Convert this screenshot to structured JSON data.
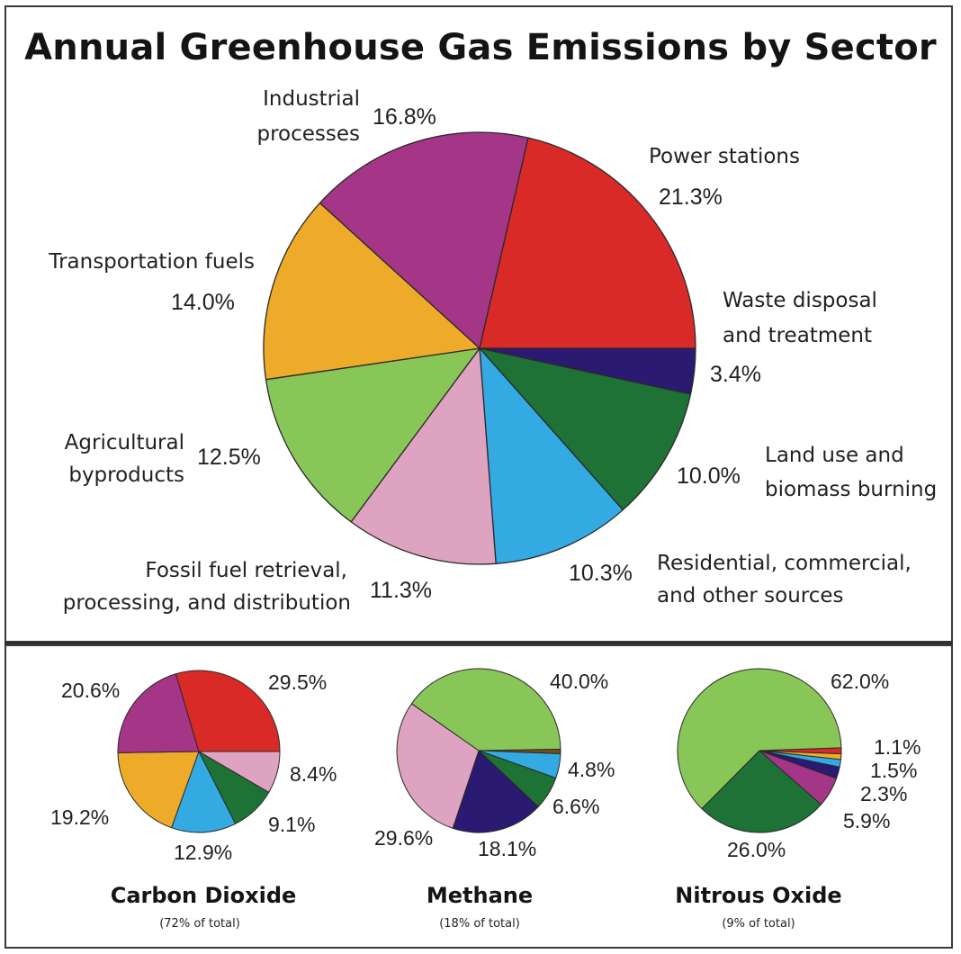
{
  "chart_data": [
    {
      "type": "pie",
      "title": "Annual Greenhouse Gas Emissions by Sector",
      "slices": [
        {
          "label": "Power stations",
          "value": 21.3,
          "value_label": "21.3%",
          "color": "#da2a27"
        },
        {
          "label": "Waste disposal and treatment",
          "value": 3.4,
          "value_label": "3.4%",
          "color": "#2b1a72"
        },
        {
          "label": "Land use and biomass burning",
          "value": 10.0,
          "value_label": "10.0%",
          "color": "#1e7236"
        },
        {
          "label": "Residential, commercial, and other sources",
          "value": 10.3,
          "value_label": "10.3%",
          "color": "#33aae1"
        },
        {
          "label": "Fossil fuel retrieval, processing, and distribution",
          "value": 11.3,
          "value_label": "11.3%",
          "color": "#dea3c0"
        },
        {
          "label": "Agricultural byproducts",
          "value": 12.5,
          "value_label": "12.5%",
          "color": "#88c657"
        },
        {
          "label": "Transportation fuels",
          "value": 14.0,
          "value_label": "14.0%",
          "color": "#eeab2a"
        },
        {
          "label": "Industrial processes",
          "value": 16.8,
          "value_label": "16.8%",
          "color": "#a53586"
        }
      ],
      "label_lines": {
        "power": [
          "Power stations"
        ],
        "waste": [
          "Waste disposal",
          "and treatment"
        ],
        "land": [
          "Land use and",
          "biomass burning"
        ],
        "residential": [
          "Residential, commercial,",
          "and other sources"
        ],
        "fossil": [
          "Fossil fuel retrieval,",
          "processing, and distribution"
        ],
        "agri": [
          "Agricultural",
          "byproducts"
        ],
        "transport": [
          "Transportation fuels"
        ],
        "industrial": [
          "Industrial",
          "processes"
        ]
      }
    },
    {
      "type": "pie",
      "title": "Carbon Dioxide",
      "subtitle": "(72% of total)",
      "slices": [
        {
          "value": 29.5,
          "value_label": "29.5%",
          "color": "#da2a27"
        },
        {
          "value": 8.4,
          "value_label": "8.4%",
          "color": "#dea3c0"
        },
        {
          "value": 9.1,
          "value_label": "9.1%",
          "color": "#1e7236"
        },
        {
          "value": 12.9,
          "value_label": "12.9%",
          "color": "#33aae1"
        },
        {
          "value": 19.2,
          "value_label": "19.2%",
          "color": "#eeab2a"
        },
        {
          "value": 20.6,
          "value_label": "20.6%",
          "color": "#a53586"
        }
      ]
    },
    {
      "type": "pie",
      "title": "Methane",
      "subtitle": "(18% of total)",
      "slices": [
        {
          "value": 0.9,
          "value_label": "",
          "color": "#7a4a1e"
        },
        {
          "value": 4.8,
          "value_label": "4.8%",
          "color": "#33aae1"
        },
        {
          "value": 6.6,
          "value_label": "6.6%",
          "color": "#1e7236"
        },
        {
          "value": 18.1,
          "value_label": "18.1%",
          "color": "#2b1a72"
        },
        {
          "value": 29.6,
          "value_label": "29.6%",
          "color": "#dea3c0"
        },
        {
          "value": 40.0,
          "value_label": "40.0%",
          "color": "#88c657"
        }
      ]
    },
    {
      "type": "pie",
      "title": "Nitrous Oxide",
      "subtitle": "(9% of total)",
      "slices": [
        {
          "value": 1.2,
          "value_label": "",
          "color": "#da2a27"
        },
        {
          "value": 1.1,
          "value_label": "1.1%",
          "color": "#eeab2a"
        },
        {
          "value": 1.5,
          "value_label": "1.5%",
          "color": "#33aae1"
        },
        {
          "value": 2.3,
          "value_label": "2.3%",
          "color": "#2b1a72"
        },
        {
          "value": 5.9,
          "value_label": "5.9%",
          "color": "#a53586"
        },
        {
          "value": 26.0,
          "value_label": "26.0%",
          "color": "#1e7236"
        },
        {
          "value": 62.0,
          "value_label": "62.0%",
          "color": "#88c657"
        }
      ]
    }
  ]
}
